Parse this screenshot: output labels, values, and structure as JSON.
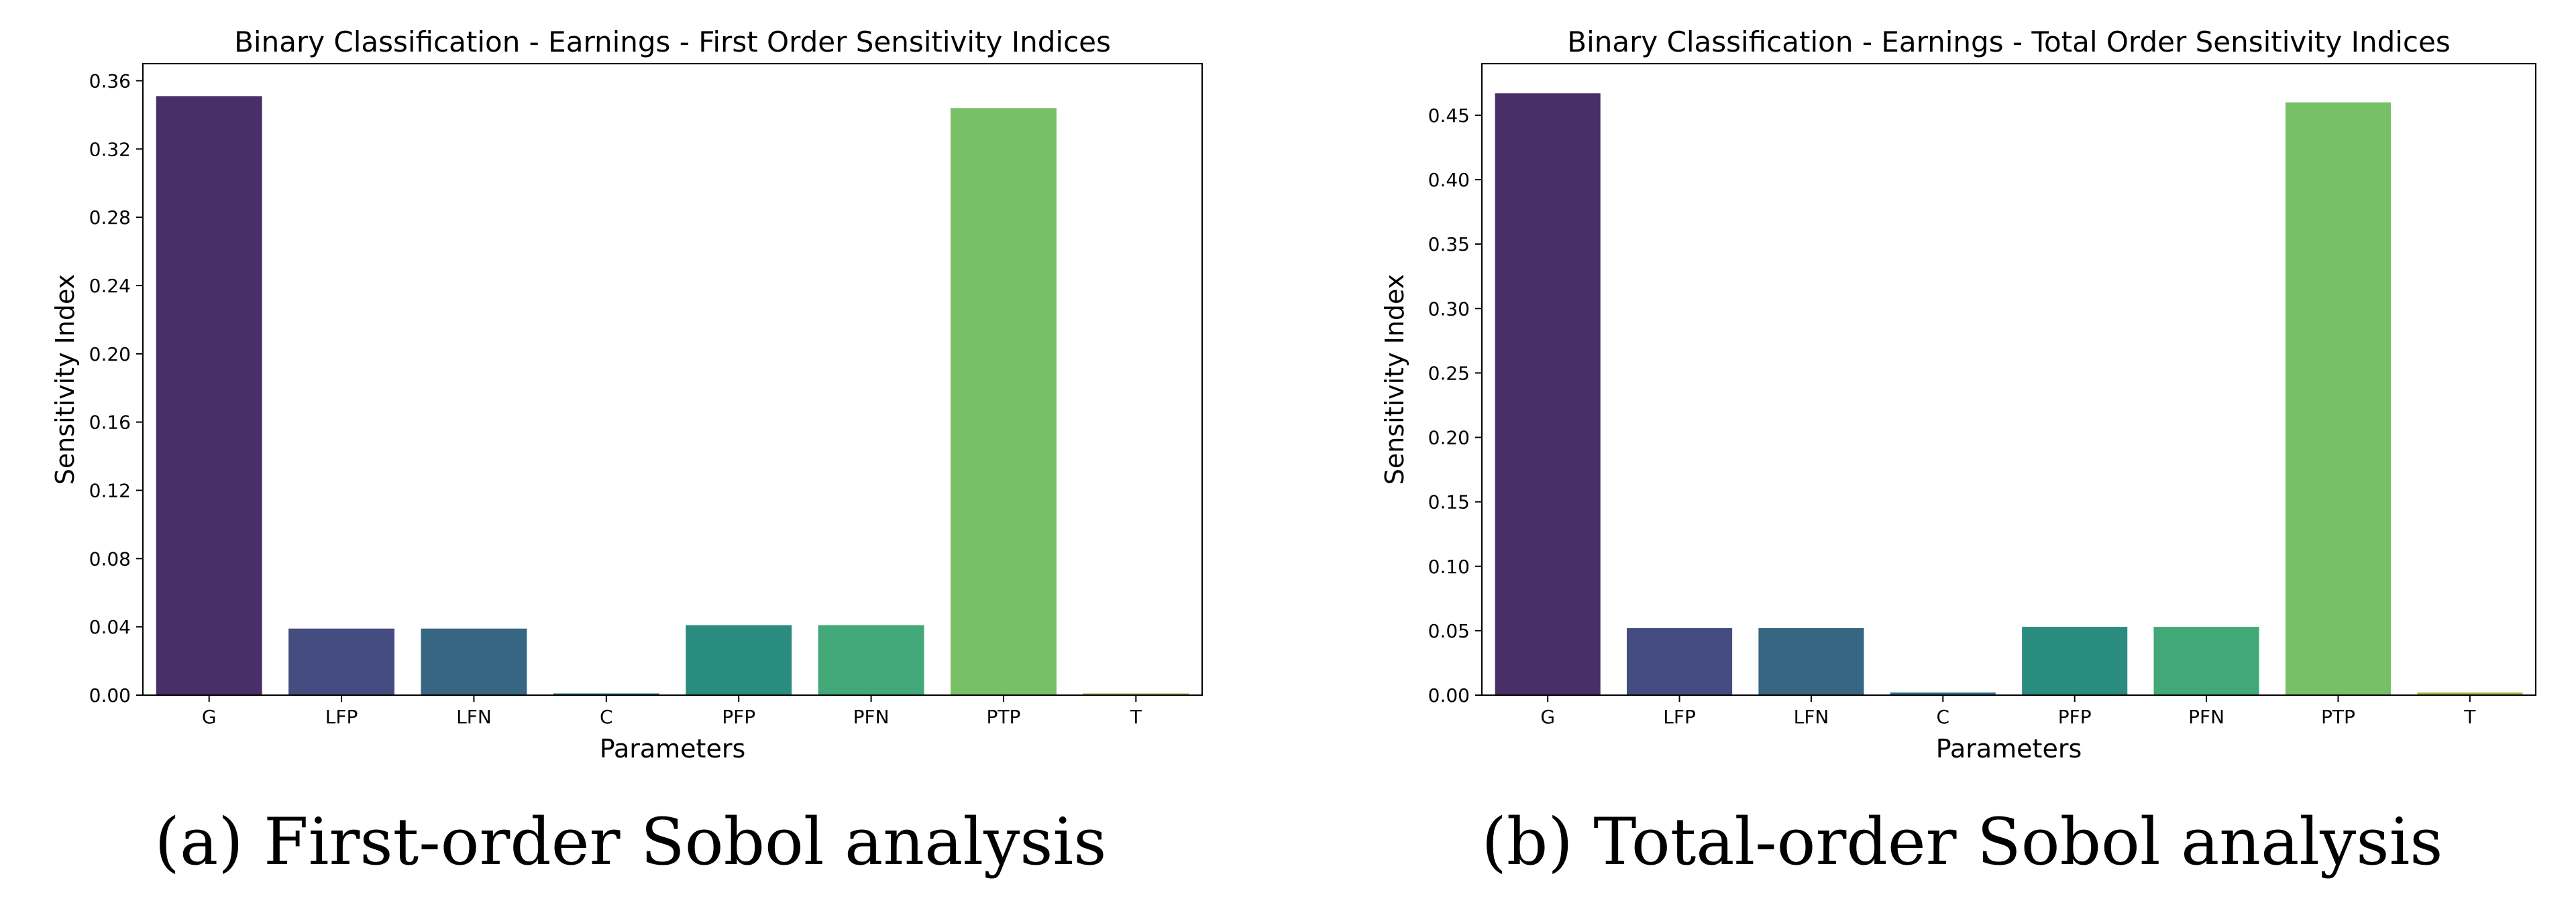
{
  "chart_data": [
    {
      "type": "bar",
      "title": "Binary Classification - Earnings - First Order Sensitivity Indices",
      "xlabel": "Parameters",
      "ylabel": "Sensitivity Index",
      "categories": [
        "G",
        "LFP",
        "LFN",
        "C",
        "PFP",
        "PFN",
        "PTP",
        "T"
      ],
      "values": [
        0.351,
        0.039,
        0.039,
        0.001,
        0.041,
        0.041,
        0.344,
        0.001
      ],
      "ylim": [
        0,
        0.37
      ],
      "yticks": [
        0.0,
        0.04,
        0.08,
        0.12,
        0.16,
        0.2,
        0.24,
        0.28,
        0.32,
        0.36
      ],
      "ytick_labels": [
        "0.00",
        "0.04",
        "0.08",
        "0.12",
        "0.16",
        "0.20",
        "0.24",
        "0.28",
        "0.32",
        "0.36"
      ],
      "colors": [
        "#482f68",
        "#454d80",
        "#366682",
        "#29758a",
        "#2a8c7e",
        "#43a877",
        "#78c068",
        "#a3b943"
      ],
      "grid": false,
      "caption": "(a) First-order Sobol analysis"
    },
    {
      "type": "bar",
      "title": "Binary Classification - Earnings - Total Order Sensitivity Indices",
      "xlabel": "Parameters",
      "ylabel": "Sensitivity Index",
      "categories": [
        "G",
        "LFP",
        "LFN",
        "C",
        "PFP",
        "PFN",
        "PTP",
        "T"
      ],
      "values": [
        0.467,
        0.052,
        0.052,
        0.002,
        0.053,
        0.053,
        0.46,
        0.002
      ],
      "ylim": [
        0,
        0.49
      ],
      "yticks": [
        0.0,
        0.05,
        0.1,
        0.15,
        0.2,
        0.25,
        0.3,
        0.35,
        0.4,
        0.45
      ],
      "ytick_labels": [
        "0.00",
        "0.05",
        "0.10",
        "0.15",
        "0.20",
        "0.25",
        "0.30",
        "0.35",
        "0.40",
        "0.45"
      ],
      "colors": [
        "#482f68",
        "#454d80",
        "#366682",
        "#29758a",
        "#2a8c7e",
        "#43a877",
        "#78c068",
        "#a3b943"
      ],
      "grid": false,
      "caption": "(b) Total-order Sobol analysis"
    }
  ]
}
